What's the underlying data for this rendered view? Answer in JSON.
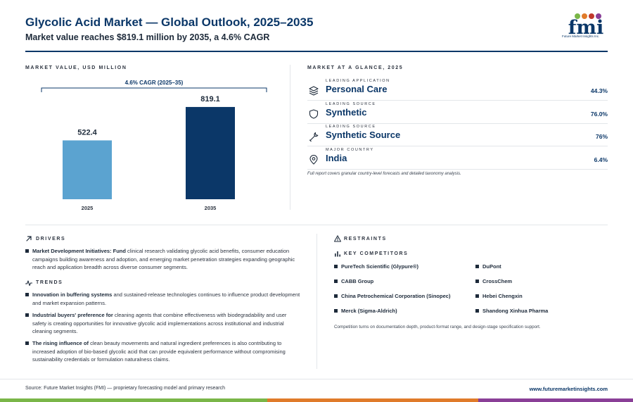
{
  "header": {
    "title": "Glycolic Acid Market — Global Outlook, 2025–2035",
    "subtitle": "Market value reaches $819.1 million by 2035, a 4.6% CAGR",
    "logo_text": "fmi",
    "logo_subtext": "Future Market Insights Inc."
  },
  "chart_section": {
    "label": "MARKET VALUE, USD MILLION",
    "cagr_annotation": "4.6% CAGR (2025–35)"
  },
  "chart_data": {
    "type": "bar",
    "categories": [
      "2025",
      "2035"
    ],
    "values": [
      522.4,
      819.1
    ],
    "value_labels": [
      "522.4",
      "819.1"
    ],
    "colors": [
      "#5ba3d0",
      "#0b3768"
    ],
    "ylim": [
      0,
      1000
    ],
    "grid": false,
    "title": "",
    "xlabel": "",
    "ylabel": ""
  },
  "glance": {
    "label": "MARKET AT A GLANCE, 2025",
    "items": [
      {
        "category": "LEADING APPLICATION",
        "name": "Personal Care",
        "value": "44.3%",
        "icon": "layers-icon"
      },
      {
        "category": "LEADING SOURCE",
        "name": "Synthetic",
        "value": "76.0%",
        "icon": "shield-icon"
      },
      {
        "category": "LEADING SOURCE",
        "name": "Synthetic Source",
        "value": "76%",
        "icon": "wrench-icon"
      },
      {
        "category": "MAJOR COUNTRY",
        "name": "India",
        "value": "6.4%",
        "icon": "map-pin-icon"
      }
    ],
    "note": "Full report covers granular country-level forecasts and detailed taxonomy analysis."
  },
  "drivers": {
    "label": "DRIVERS",
    "items": [
      {
        "bold": "Market Development Initiatives: Fund",
        "text": " clinical research validating glycolic acid benefits, consumer education campaigns building awareness and adoption, and emerging market penetration strategies expanding geographic reach and application breadth across diverse consumer segments."
      }
    ]
  },
  "trends": {
    "label": "TRENDS",
    "items": [
      {
        "bold": "Innovation in buffering systems",
        "text": " and sustained-release technologies continues to influence product development and market expansion patterns."
      },
      {
        "bold": "Industrial buyers' preference for",
        "text": " cleaning agents that combine effectiveness with biodegradability and user safety is creating opportunities for innovative glycolic acid implementations across institutional and industrial cleaning segments."
      },
      {
        "bold": "The rising influence of",
        "text": " clean beauty movements and natural ingredient preferences is also contributing to increased adoption of bio-based glycolic acid that can provide equivalent performance without compromising sustainability credentials or formulation naturalness claims."
      }
    ]
  },
  "restraints": {
    "label": "RESTRAINTS"
  },
  "competitors": {
    "label": "KEY COMPETITORS",
    "left": [
      "PureTech Scientific (Glypure®)",
      "CABB Group",
      "China Petrochemical Corporation (Sinopec)",
      "Merck (Sigma-Aldrich)"
    ],
    "right": [
      "DuPont",
      "CrossChem",
      "Hebei Chengxin",
      "Shandong Xinhua Pharma"
    ],
    "note": "Competition turns on documentation depth, product-format range, and design-stage specification support."
  },
  "footer": {
    "source": "Source: Future Market Insights (FMI) — proprietary forecasting model and primary research",
    "url": "www.futuremarketinsights.com"
  },
  "colors": {
    "navy": "#0b3768",
    "light_blue": "#5ba3d0",
    "footer_green": "#7ab648",
    "footer_orange": "#e07b2a",
    "footer_purple": "#8a3f97"
  }
}
